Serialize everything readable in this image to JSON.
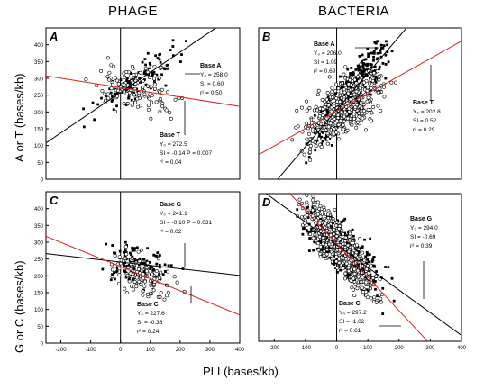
{
  "figure": {
    "column_titles": [
      "PHAGE",
      "BACTERIA"
    ],
    "row_ylabels": [
      "A or T  (bases/kb)",
      "G or C  (bases/kb)"
    ],
    "xlabel": "PLI  (bases/kb)"
  },
  "chart_data": [
    {
      "type": "scatter",
      "panel": "A",
      "xlim": [
        -250,
        400
      ],
      "ylim": [
        0,
        450
      ],
      "xticks": [],
      "yticks": [
        0,
        50,
        100,
        150,
        200,
        250,
        300,
        350,
        400
      ],
      "series": [
        {
          "name": "Base A",
          "marker": "filled",
          "y0": 258.0,
          "slope": 0.6,
          "r2": 0.5,
          "annotation": [
            "Base A",
            "Y₀  = 258.0",
            "SI  = 0.60",
            "r²  = 0.50"
          ]
        },
        {
          "name": "Base T",
          "marker": "open",
          "y0": 272.5,
          "slope": -0.14,
          "r2": 0.04,
          "p": 0.007,
          "annotation": [
            "Base T",
            "Y₀  = 272.5",
            "SI  = -0.14    P = 0.007",
            "r²  = 0.04"
          ]
        }
      ]
    },
    {
      "type": "scatter",
      "panel": "B",
      "xlim": [
        -250,
        400
      ],
      "ylim": [
        0,
        450
      ],
      "xticks": [],
      "yticks": [],
      "series": [
        {
          "name": "Base A",
          "marker": "filled",
          "y0": 206.0,
          "slope": 1.09,
          "r2": 0.69,
          "annotation": [
            "Base A",
            "Y₀  = 206.0",
            "SI  = 1.09",
            "r²  = 0.69"
          ]
        },
        {
          "name": "Base T",
          "marker": "open",
          "y0": 202.8,
          "slope": 0.52,
          "r2": 0.29,
          "annotation": [
            "Base T",
            "Y₀  = 202.8",
            "SI  = 0.52",
            "r²  = 0.29"
          ]
        }
      ]
    },
    {
      "type": "scatter",
      "panel": "C",
      "xlim": [
        -250,
        400
      ],
      "ylim": [
        0,
        450
      ],
      "xticks": [
        -200,
        -100,
        0,
        100,
        200,
        300,
        400
      ],
      "yticks": [
        0,
        50,
        100,
        150,
        200,
        250,
        300,
        350,
        400
      ],
      "series": [
        {
          "name": "Base G",
          "marker": "filled",
          "y0": 241.1,
          "slope": -0.1,
          "r2": 0.02,
          "p": 0.031,
          "annotation": [
            "Base G",
            "Y₀  = 241.1",
            "SI  = -0.10    P = 0.031",
            "r²  = 0.02"
          ]
        },
        {
          "name": "Base C",
          "marker": "open",
          "y0": 227.6,
          "slope": -0.36,
          "r2": 0.24,
          "annotation": [
            "Base C",
            "Y₀  = 227.6",
            "SI  = -0.36",
            "r²  = 0.24"
          ]
        }
      ]
    },
    {
      "type": "scatter",
      "panel": "D",
      "xlim": [
        -250,
        400
      ],
      "ylim": [
        0,
        450
      ],
      "xticks": [
        -200,
        -100,
        0,
        100,
        200,
        300,
        400
      ],
      "yticks": [],
      "series": [
        {
          "name": "Base G",
          "marker": "filled",
          "y0": 294.0,
          "slope": -0.69,
          "r2": 0.39,
          "annotation": [
            "Base G",
            "Y₀  = 294.0",
            "SI  = -0.69",
            "r²  = 0.39"
          ]
        },
        {
          "name": "Base C",
          "marker": "open",
          "y0": 297.2,
          "slope": -1.02,
          "r2": 0.61,
          "annotation": [
            "Base C",
            "Y₀  = 297.2",
            "SI  = -1.02",
            "r²  = 0.61"
          ]
        }
      ]
    }
  ],
  "colors": {
    "axis": "#000000",
    "fit_line_black": "#000000",
    "fit_line_red": "#e02020"
  }
}
